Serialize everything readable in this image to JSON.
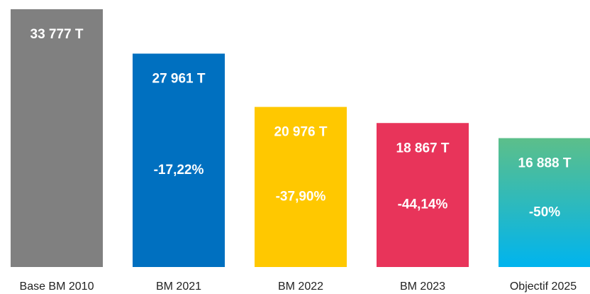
{
  "chart_data": {
    "type": "bar",
    "categories": [
      "Base BM 2010",
      "BM 2021",
      "BM 2022",
      "BM 2023",
      "Objectif 2025"
    ],
    "values": [
      33777,
      27961,
      20976,
      18867,
      16888
    ],
    "value_labels": [
      "33 777 T",
      "27 961 T",
      "20 976 T",
      "18 867 T",
      "16 888 T"
    ],
    "change_labels": [
      null,
      "-17,22%",
      "-37,90%",
      "-44,14%",
      "-50%"
    ],
    "colors": [
      "#808080",
      "#0070c0",
      "#ffc800",
      "#e8345a",
      [
        "#5cbf8a",
        "#00b4ee"
      ]
    ],
    "ylim": [
      0,
      33777
    ]
  }
}
